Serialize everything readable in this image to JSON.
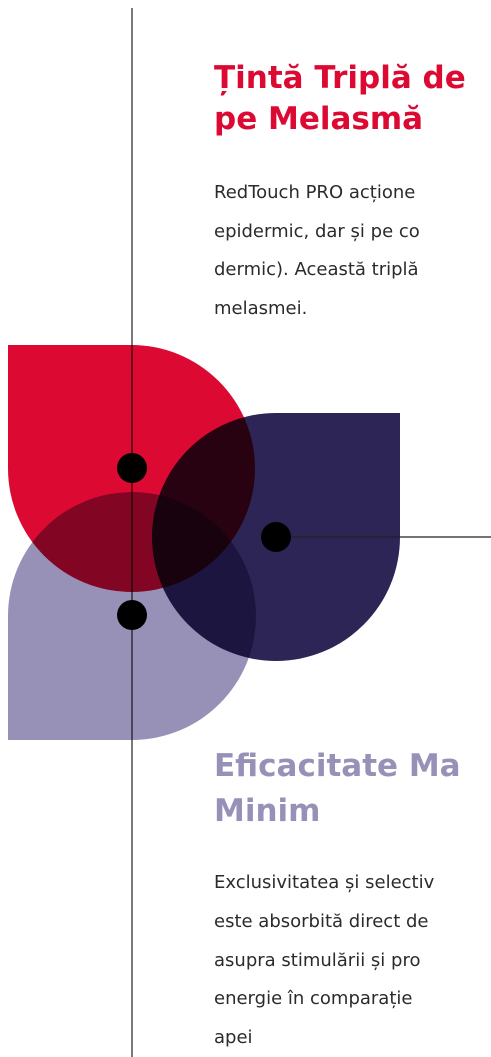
{
  "sections": [
    {
      "title": [
        "Țintă Triplă de",
        "pe Melasmă"
      ],
      "body": [
        "RedTouch PRO acțione",
        "epidermic, dar și pe co",
        "dermic). Această triplă",
        "melasmei."
      ]
    },
    {
      "title": [
        "Eficacitate Ma",
        "Minim"
      ],
      "body": [
        "Exclusivitatea și selectiv",
        "este absorbită direct de",
        "asupra stimulării și pro",
        "energie în comparație",
        "apei"
      ]
    }
  ]
}
